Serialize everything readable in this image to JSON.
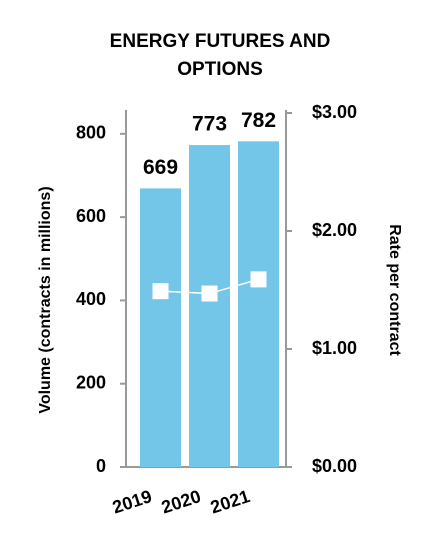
{
  "chart_data": {
    "type": "bar",
    "title": "ENERGY FUTURES AND OPTIONS",
    "ylabel": "Volume (contracts in millions)",
    "y2label": "Rate per contract",
    "categories": [
      "2019",
      "2020",
      "2021"
    ],
    "series": [
      {
        "type": "bar",
        "color": "#74c6e8",
        "values": [
          669,
          773,
          782
        ]
      },
      {
        "type": "line",
        "axis": "y2",
        "color": "#ffffff",
        "values": [
          1.49,
          1.47,
          1.59
        ]
      }
    ],
    "ylim": [
      0,
      850
    ],
    "yticks": [
      0,
      200,
      400,
      600,
      800
    ],
    "y2lim": [
      0,
      3
    ],
    "y2ticks": [
      {
        "value": 0,
        "label": "$0.00"
      },
      {
        "value": 1,
        "label": "$1.00"
      },
      {
        "value": 2,
        "label": "$2.00"
      },
      {
        "value": 3,
        "label": "$3.00"
      }
    ]
  }
}
